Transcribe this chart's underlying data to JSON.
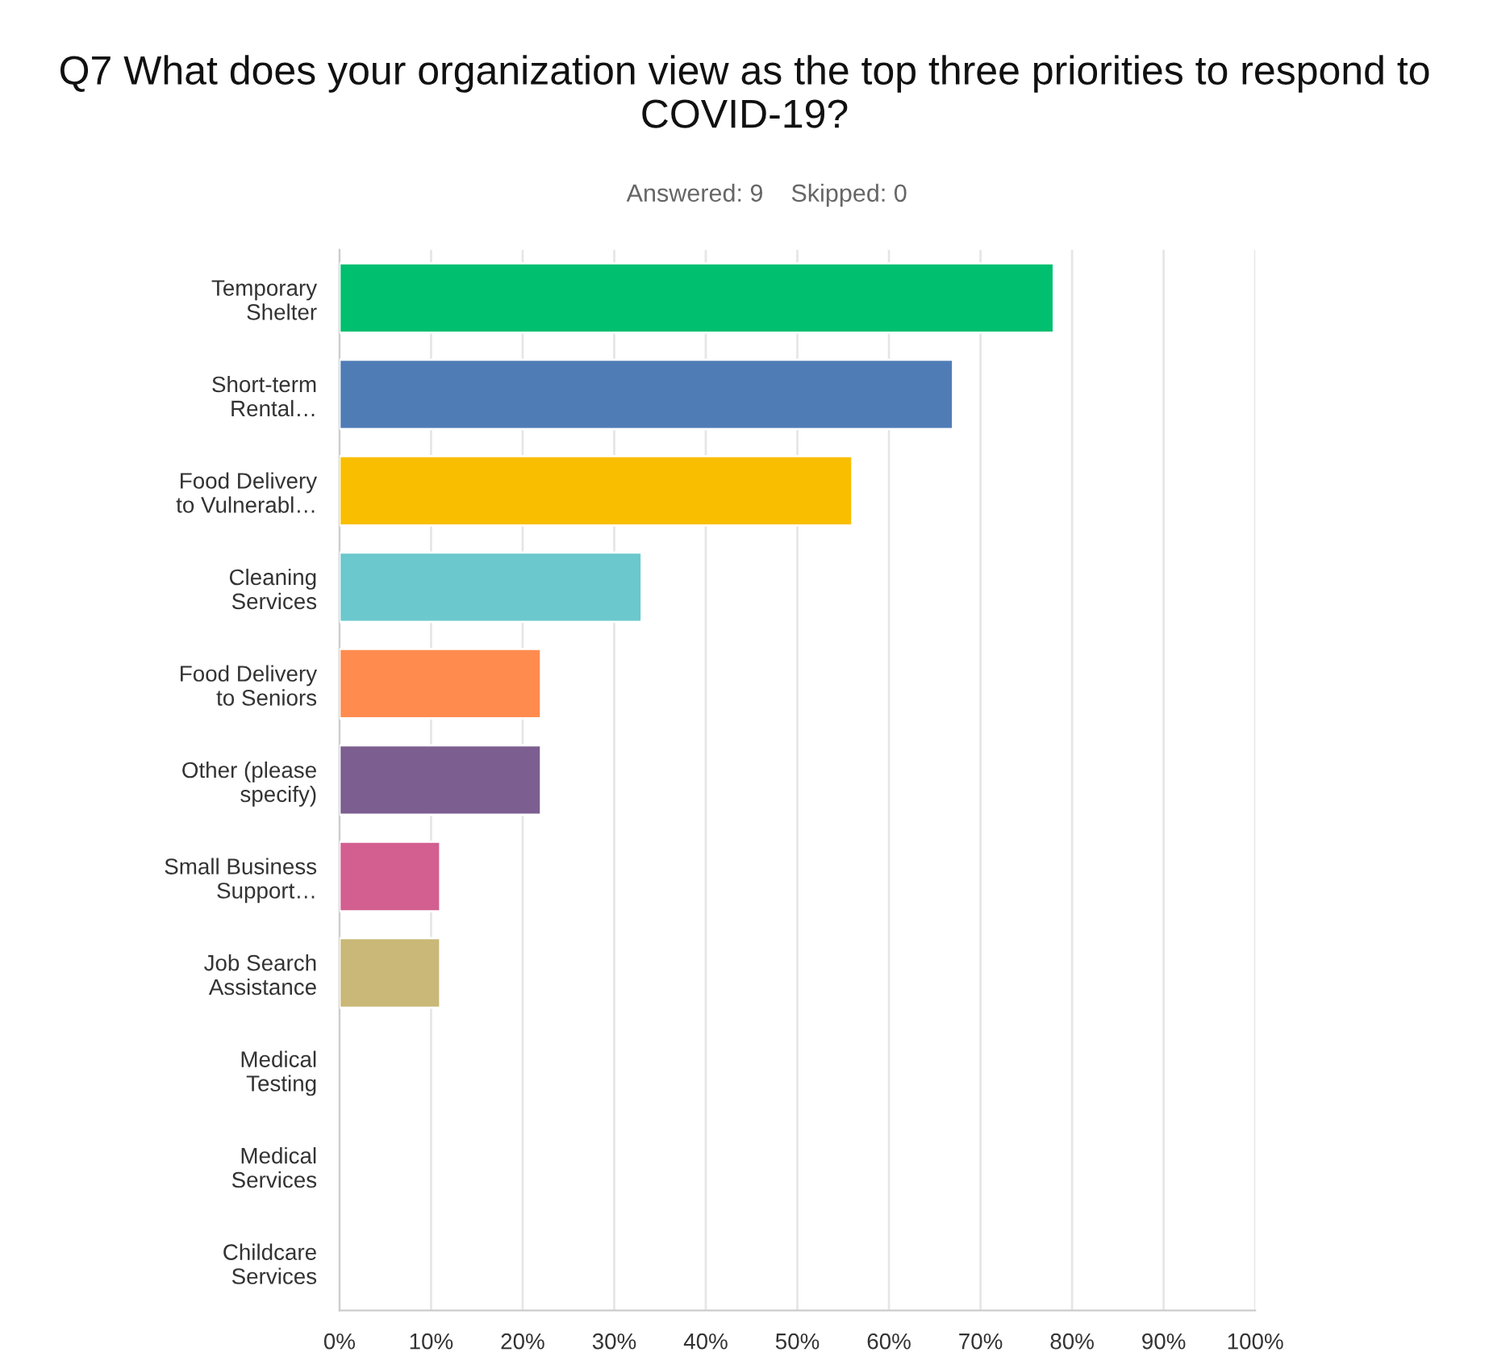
{
  "chart_data": {
    "type": "bar",
    "orientation": "horizontal",
    "title": "Q7 What does your organization view as the top three priorities to respond to COVID-19?",
    "subtitle": "Answered: 9    Skipped: 0",
    "categories": [
      "Temporary\nShelter",
      "Short-term\nRental…",
      "Food Delivery\nto Vulnerabl…",
      "Cleaning\nServices",
      "Food Delivery\nto Seniors",
      "Other (please\nspecify)",
      "Small Business\nSupport…",
      "Job Search\nAssistance",
      "Medical\nTesting",
      "Medical\nServices",
      "Childcare\nServices"
    ],
    "values": [
      78,
      67,
      56,
      33,
      22,
      22,
      11,
      11,
      0,
      0,
      0
    ],
    "colors": [
      "#00bf6f",
      "#507cb6",
      "#f9be00",
      "#6bc8cd",
      "#ff8b4f",
      "#7d5e90",
      "#d25f90",
      "#c9b877",
      null,
      null,
      null
    ],
    "xlim": [
      0,
      100
    ],
    "xticks": [
      {
        "value": 0,
        "label": "0%"
      },
      {
        "value": 10,
        "label": "10%"
      },
      {
        "value": 20,
        "label": "20%"
      },
      {
        "value": 30,
        "label": "30%"
      },
      {
        "value": 40,
        "label": "40%"
      },
      {
        "value": 50,
        "label": "50%"
      },
      {
        "value": 60,
        "label": "60%"
      },
      {
        "value": 70,
        "label": "70%"
      },
      {
        "value": 80,
        "label": "80%"
      },
      {
        "value": 90,
        "label": "90%"
      },
      {
        "value": 100,
        "label": "100%"
      }
    ],
    "grid": "x",
    "legend": false
  }
}
